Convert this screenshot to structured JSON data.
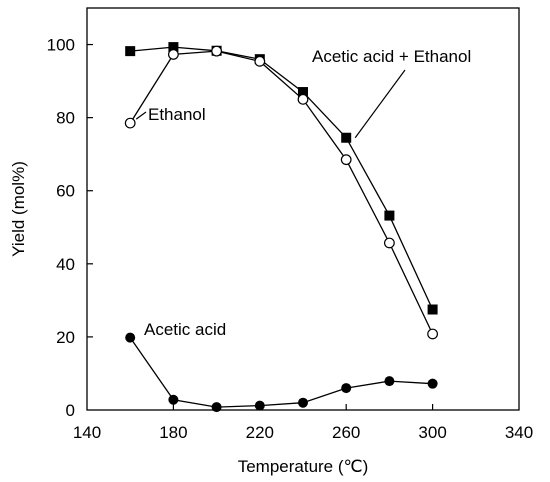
{
  "chart_data": {
    "type": "line",
    "xlabel": "Temperature (℃)",
    "ylabel": "Yield (mol%)",
    "xlim": [
      140,
      340
    ],
    "ylim": [
      0,
      110
    ],
    "xticks": [
      140,
      180,
      220,
      260,
      300,
      340
    ],
    "yticks": [
      0,
      20,
      40,
      60,
      80,
      100
    ],
    "grid": false,
    "legend": "none",
    "series": [
      {
        "name": "Acetic acid + Ethanol",
        "marker": "filled-square",
        "color": "#000000",
        "x": [
          160,
          180,
          200,
          220,
          240,
          260,
          280,
          300
        ],
        "y": [
          98.2,
          99.3,
          98.3,
          96.0,
          87.0,
          74.5,
          53.2,
          27.5
        ]
      },
      {
        "name": "Ethanol",
        "marker": "open-circle",
        "color": "#000000",
        "x": [
          160,
          180,
          200,
          220,
          240,
          260,
          280,
          300
        ],
        "y": [
          78.5,
          97.3,
          98.2,
          95.4,
          85.0,
          68.5,
          45.7,
          20.8
        ]
      },
      {
        "name": "Acetic acid",
        "marker": "filled-circle",
        "color": "#000000",
        "x": [
          160,
          180,
          200,
          220,
          240,
          260,
          280,
          300
        ],
        "y": [
          19.8,
          2.8,
          0.8,
          1.2,
          2.0,
          6.0,
          7.9,
          7.2
        ]
      }
    ],
    "annotations": [
      {
        "text": "Acetic acid + Ethanol",
        "series": 0
      },
      {
        "text": "Ethanol",
        "series": 1
      },
      {
        "text": "Acetic acid",
        "series": 2
      }
    ]
  }
}
